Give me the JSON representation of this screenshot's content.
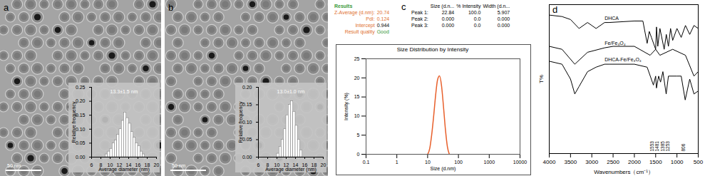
{
  "panel_labels": [
    "a",
    "b",
    "c",
    "d"
  ],
  "scale_bars": [
    "50 nm",
    "50 nm"
  ],
  "dls_results": {
    "heading": "Results",
    "rows": [
      {
        "label": "Z-Average (d.nm):",
        "value": "20.74"
      },
      {
        "label": "PdI:",
        "value": "0.124"
      },
      {
        "label": "Intercept",
        "value": "0.944"
      },
      {
        "label": "Result quality",
        "value": "Good"
      }
    ],
    "peak_table": {
      "columns": [
        "Size (d.n...",
        "% Intensity",
        "Width (d.n..."
      ],
      "rows": [
        {
          "label": "Peak 1:",
          "cells": [
            "22.84",
            "100.0",
            "5.907"
          ]
        },
        {
          "label": "Peak 2:",
          "cells": [
            "0.000",
            "0.0",
            "0.000"
          ]
        },
        {
          "label": "Peak 3:",
          "cells": [
            "0.000",
            "0.0",
            "0.000"
          ]
        }
      ]
    }
  },
  "chart_data": [
    {
      "type": "histogram",
      "annotation": "13.3±1.5 nm",
      "x_label": "Average diameter (nm)",
      "y_label": "Relative frequency",
      "bins": [
        9.0,
        9.5,
        10.0,
        10.5,
        11.0,
        11.5,
        12.0,
        12.5,
        13.0,
        13.5,
        14.0,
        14.5,
        15.0,
        15.5,
        16.0,
        16.5,
        17.0,
        17.5
      ],
      "values": [
        0.01,
        0.02,
        0.03,
        0.05,
        0.06,
        0.08,
        0.1,
        0.13,
        0.16,
        0.14,
        0.12,
        0.09,
        0.07,
        0.05,
        0.04,
        0.02,
        0.01
      ],
      "color": "#ffffff",
      "xlim": [
        6,
        20
      ],
      "xticks": [
        6,
        8,
        10,
        12,
        14,
        16,
        18,
        20
      ],
      "ylim": [
        0,
        0.25
      ],
      "yticks": [
        {
          "value": 0,
          "label": "0.00"
        },
        0.05,
        {
          "value": 0.1,
          "label": "0.10"
        },
        0.15,
        {
          "value": 0.2,
          "label": "0.20"
        },
        0.25
      ]
    },
    {
      "type": "histogram",
      "annotation": "13.0±1.0 nm",
      "x_label": "Average diameter (nm)",
      "y_label": "Relative frequency",
      "bins": [
        10.0,
        10.5,
        11.0,
        11.5,
        12.0,
        12.5,
        13.0,
        13.5,
        14.0,
        14.5,
        15.0,
        15.5
      ],
      "values": [
        0.01,
        0.03,
        0.05,
        0.08,
        0.12,
        0.15,
        0.16,
        0.13,
        0.09,
        0.05,
        0.02
      ],
      "color": "#ffffff",
      "xlim": [
        6,
        20
      ],
      "xticks": [
        6,
        8,
        10,
        12,
        14,
        16,
        18,
        20
      ],
      "ylim": [
        0,
        0.2
      ],
      "yticks": [
        {
          "value": 0,
          "label": "0.00"
        },
        0.05,
        {
          "value": 0.1,
          "label": "0.10"
        },
        0.15,
        {
          "value": 0.2,
          "label": "0.20"
        }
      ]
    },
    {
      "type": "line",
      "title": "Size Distribution by Intensity",
      "x_label": "Size (d.nm)",
      "y_label": "Intensity (%)",
      "log": "x",
      "x": [
        10,
        11.7,
        13.5,
        15.7,
        18.2,
        21.0,
        24.4,
        28.2,
        32.7,
        37.8,
        43.8,
        50.7
      ],
      "values": [
        0,
        1.5,
        5,
        10,
        15.5,
        19.5,
        20.5,
        18,
        12.5,
        6.5,
        2,
        0
      ],
      "color": "#e8602c",
      "xlim": [
        0.1,
        10000
      ],
      "xticks": [
        0.1,
        1,
        10,
        100,
        1000,
        10000
      ],
      "ylim": [
        0,
        25
      ],
      "yticks": [
        0,
        5,
        10,
        15,
        20,
        25
      ]
    },
    {
      "type": "line",
      "x_label": "Wavenumbers（cm⁻¹）",
      "y_label": "T%",
      "tick_labels": "x",
      "xlim": [
        4000,
        500
      ],
      "xticks": [
        4000,
        3500,
        3000,
        2500,
        2000,
        1500,
        1000,
        500
      ],
      "ylim": [
        0,
        100
      ],
      "annotations": [
        1553,
        1481,
        1385,
        1253,
        806
      ],
      "series": [
        {
          "name": "DHCA",
          "color": "#000000",
          "x": [
            4000,
            3700,
            3500,
            3300,
            3100,
            3000,
            2900,
            2700,
            2600,
            2000,
            1800,
            1700,
            1650,
            1600,
            1500,
            1480,
            1450,
            1400,
            1300,
            1250,
            1200,
            1150,
            1100,
            1000,
            900,
            800,
            700,
            600,
            500
          ],
          "values": [
            93,
            92,
            90,
            84,
            88,
            86,
            84,
            88,
            88,
            89,
            89,
            74,
            82,
            78,
            70,
            85,
            72,
            84,
            70,
            80,
            72,
            84,
            76,
            84,
            78,
            86,
            80,
            86,
            84
          ]
        },
        {
          "name": "Fe/Fe₃O₄",
          "color": "#000000",
          "x": [
            4000,
            3700,
            3400,
            3100,
            2700,
            2500,
            2000,
            1630,
            1500,
            1400,
            1100,
            800,
            600,
            500
          ],
          "values": [
            72,
            70,
            60,
            68,
            71,
            72,
            72,
            66,
            70,
            66,
            70,
            66,
            52,
            55
          ]
        },
        {
          "name": "DHCA-Fe/Fe₃O₄",
          "color": "#000000",
          "x": [
            4000,
            3700,
            3500,
            3400,
            3300,
            3100,
            2900,
            2700,
            2600,
            2000,
            1700,
            1553,
            1500,
            1481,
            1430,
            1385,
            1330,
            1253,
            1200,
            1000,
            900,
            806,
            700,
            600,
            500
          ],
          "values": [
            62,
            60,
            50,
            40,
            45,
            55,
            58,
            60,
            60,
            60,
            58,
            46,
            52,
            44,
            52,
            48,
            55,
            40,
            52,
            52,
            52,
            36,
            50,
            40,
            42
          ]
        }
      ]
    }
  ]
}
